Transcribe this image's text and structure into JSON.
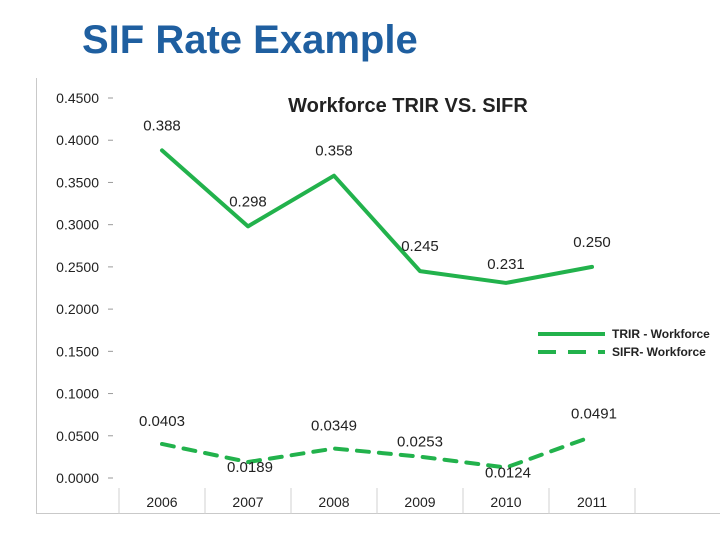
{
  "slide": {
    "title": "SIF Rate Example"
  },
  "chart_data": {
    "type": "line",
    "title": "Workforce TRIR VS. SIFR",
    "xlabel": "",
    "ylabel": "",
    "categories": [
      "2006",
      "2007",
      "2008",
      "2009",
      "2010",
      "2011"
    ],
    "ylim": [
      0,
      0.45
    ],
    "yticks": [
      "0.0000",
      "0.0500",
      "0.1000",
      "0.1500",
      "0.2000",
      "0.2500",
      "0.3000",
      "0.3500",
      "0.4000",
      "0.4500"
    ],
    "legend_position": "right",
    "grid": false,
    "series": [
      {
        "name": "TRIR - Workforce",
        "style": "solid",
        "color": "#22b24c",
        "values": [
          0.388,
          0.298,
          0.358,
          0.245,
          0.231,
          0.25
        ],
        "labels": [
          "0.388",
          "0.298",
          "0.358",
          "0.245",
          "0.231",
          "0.250"
        ]
      },
      {
        "name": "SIFR- Workforce",
        "style": "dashed",
        "color": "#22b24c",
        "values": [
          0.0403,
          0.0189,
          0.0349,
          0.0253,
          0.0124,
          0.0491
        ],
        "labels": [
          "0.0403",
          "0.0189",
          "0.0349",
          "0.0253",
          "0.0124",
          "0.0491"
        ]
      }
    ]
  }
}
